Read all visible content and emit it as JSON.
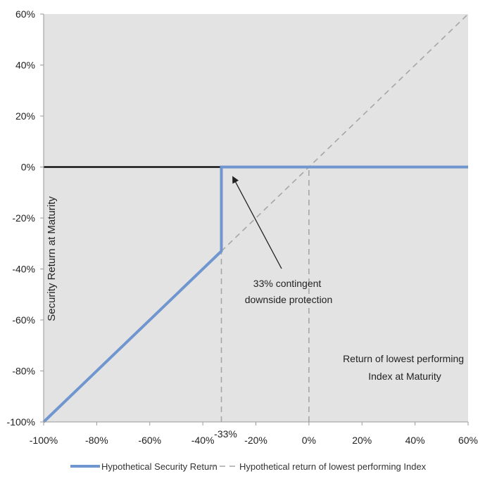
{
  "chart_data": {
    "type": "line",
    "title": "",
    "xlabel": "Return of lowest performing Index at Maturity",
    "xlabel_lines": [
      "Return of lowest performing",
      "Index at Maturity"
    ],
    "ylabel": "Security Return at Maturity",
    "xlim": [
      -100,
      60
    ],
    "ylim": [
      -100,
      60
    ],
    "x_ticks": [
      -100,
      -80,
      -60,
      -40,
      -20,
      0,
      20,
      40,
      60
    ],
    "x_tick_labels": [
      "-100%",
      "-80%",
      "-60%",
      "-40%",
      "-20%",
      "0%",
      "20%",
      "40%",
      "60%"
    ],
    "y_ticks": [
      -100,
      -80,
      -60,
      -40,
      -20,
      0,
      20,
      40,
      60
    ],
    "y_tick_labels": [
      "-100%",
      "-80%",
      "-60%",
      "-40%",
      "-20%",
      "0%",
      "20%",
      "40%",
      "60%"
    ],
    "extra_x_tick": {
      "value": -33,
      "label": "-33%"
    },
    "grid": false,
    "background": "#e3e3e3",
    "series": [
      {
        "name": "Hypothetical Security Return",
        "color": "#7096cf",
        "style": "solid",
        "x": [
          -100,
          -33,
          -33,
          60
        ],
        "y": [
          -100,
          -33,
          0,
          0
        ]
      },
      {
        "name": "Hypothetical return of lowest performing Index",
        "color": "#a6a6a6",
        "style": "dashed",
        "x": [
          -100,
          60
        ],
        "y": [
          -100,
          60
        ]
      }
    ],
    "reference_lines": [
      {
        "type": "vertical",
        "x": -33,
        "y_range": [
          -100,
          -33
        ],
        "style": "dashed",
        "color": "#a6a6a6"
      },
      {
        "type": "vertical",
        "x": 0,
        "y_range": [
          -100,
          0
        ],
        "style": "dashed",
        "color": "#a6a6a6"
      },
      {
        "type": "horizontal",
        "y": 0,
        "style": "solid",
        "color": "#000000"
      }
    ],
    "annotation": {
      "lines": [
        "33% contingent",
        "downside protection"
      ],
      "arrow_to": {
        "x": -33,
        "y": 0
      }
    },
    "legend_position": "bottom-center"
  }
}
